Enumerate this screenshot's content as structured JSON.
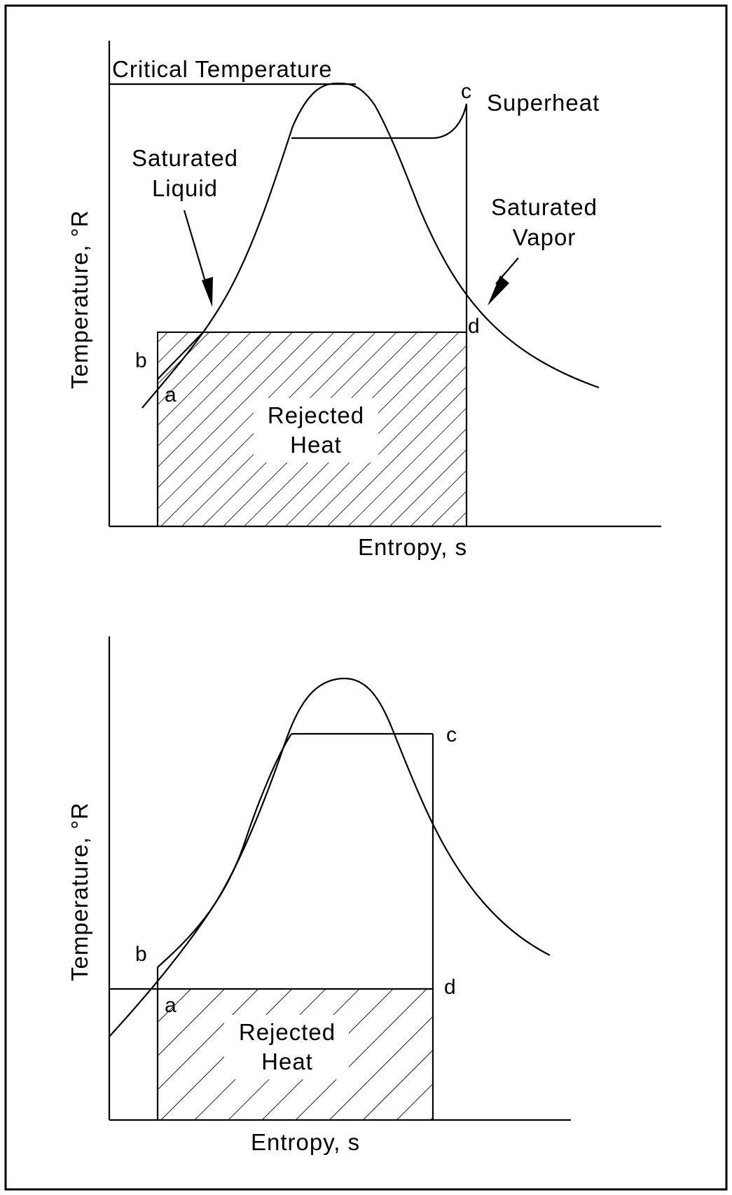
{
  "top_diagram": {
    "critical_temperature_label": "Critical Temperature",
    "superheat_label": "Superheat",
    "saturated_liquid_line1": "Saturated",
    "saturated_liquid_line2": "Liquid",
    "saturated_vapor_line1": "Saturated",
    "saturated_vapor_line2": "Vapor",
    "y_axis_label": "Temperature, °R",
    "x_axis_label": "Entropy, s",
    "rejected_heat_line1": "Rejected",
    "rejected_heat_line2": "Heat",
    "point_a": "a",
    "point_b": "b",
    "point_c": "c",
    "point_d": "d"
  },
  "bottom_diagram": {
    "y_axis_label": "Temperature, °R",
    "x_axis_label": "Entropy, s",
    "rejected_heat_line1": "Rejected",
    "rejected_heat_line2": "Heat",
    "point_a": "a",
    "point_b": "b",
    "point_c": "c",
    "point_d": "d"
  }
}
